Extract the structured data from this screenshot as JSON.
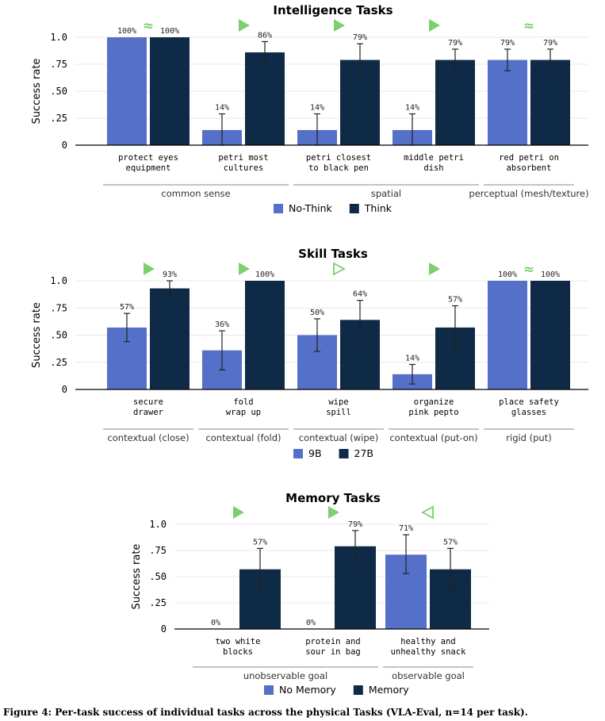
{
  "colors": {
    "light": "#5570c8",
    "dark": "#0e2a47",
    "marker": "#7ccf6e"
  },
  "chart_data": [
    {
      "type": "bar",
      "title": "Intelligence Tasks",
      "ylabel": "Success rate",
      "ylim": [
        0,
        1.0
      ],
      "yticks": [
        "0",
        ".25",
        ".50",
        ".75",
        "1.0"
      ],
      "categories": [
        "protect eyes\nequipment",
        "petri most\ncultures",
        "petri closest\nto black pen",
        "middle petri\ndish",
        "red petri on\nabsorbent"
      ],
      "series": [
        {
          "name": "No-Think",
          "values": [
            1.0,
            0.14,
            0.14,
            0.14,
            0.79
          ],
          "labels": [
            "100%",
            "14%",
            "14%",
            "14%",
            "79%"
          ],
          "err_low": [
            0.0,
            0.14,
            0.14,
            0.14,
            0.1
          ],
          "err_high": [
            0.0,
            0.15,
            0.15,
            0.15,
            0.1
          ]
        },
        {
          "name": "Think",
          "values": [
            1.0,
            0.86,
            0.79,
            0.79,
            0.79
          ],
          "labels": [
            "100%",
            "86%",
            "79%",
            "79%",
            "79%"
          ],
          "err_low": [
            0.0,
            0.1,
            0.15,
            0.1,
            0.1
          ],
          "err_high": [
            0.0,
            0.1,
            0.15,
            0.1,
            0.1
          ]
        }
      ],
      "markers": [
        "≈",
        "filled-right",
        "filled-right",
        "filled-right",
        "≈"
      ],
      "groups": [
        {
          "label": "common sense",
          "from": 0,
          "to": 1
        },
        {
          "label": "spatial",
          "from": 2,
          "to": 3
        },
        {
          "label": "perceptual (mesh/texture)",
          "from": 4,
          "to": 4
        }
      ],
      "legend": [
        "No-Think",
        "Think"
      ]
    },
    {
      "type": "bar",
      "title": "Skill Tasks",
      "ylabel": "Success rate",
      "ylim": [
        0,
        1.0
      ],
      "yticks": [
        "0",
        ".25",
        ".50",
        ".75",
        "1.0"
      ],
      "categories": [
        "secure\ndrawer",
        "fold\nwrap up",
        "wipe\nspill",
        "organize\npink pepto",
        "place safety\nglasses"
      ],
      "series": [
        {
          "name": "9B",
          "values": [
            0.57,
            0.36,
            0.5,
            0.14,
            1.0
          ],
          "labels": [
            "57%",
            "36%",
            "50%",
            "14%",
            "100%"
          ],
          "err_low": [
            0.13,
            0.18,
            0.15,
            0.09,
            0.0
          ],
          "err_high": [
            0.13,
            0.18,
            0.15,
            0.09,
            0.0
          ]
        },
        {
          "name": "27B",
          "values": [
            0.93,
            1.0,
            0.64,
            0.57,
            1.0
          ],
          "labels": [
            "93%",
            "100%",
            "64%",
            "57%",
            "100%"
          ],
          "err_low": [
            0.07,
            0.0,
            0.18,
            0.2,
            0.0
          ],
          "err_high": [
            0.07,
            0.0,
            0.18,
            0.2,
            0.0
          ]
        }
      ],
      "markers": [
        "filled-right",
        "filled-right",
        "hollow-right",
        "filled-right",
        "≈"
      ],
      "groups": [
        {
          "label": "contextual (close)",
          "from": 0,
          "to": 0
        },
        {
          "label": "contextual (fold)",
          "from": 1,
          "to": 1
        },
        {
          "label": "contextual (wipe)",
          "from": 2,
          "to": 2
        },
        {
          "label": "contextual (put-on)",
          "from": 3,
          "to": 3
        },
        {
          "label": "rigid (put)",
          "from": 4,
          "to": 4
        }
      ],
      "legend": [
        "9B",
        "27B"
      ]
    },
    {
      "type": "bar",
      "title": "Memory Tasks",
      "ylabel": "Success rate",
      "ylim": [
        0,
        1.0
      ],
      "yticks": [
        "0",
        ".25",
        ".50",
        ".75",
        "1.0"
      ],
      "categories": [
        "two white\nblocks",
        "protein and\nsour in bag",
        "healthy and\nunhealthy snack"
      ],
      "series": [
        {
          "name": "No Memory",
          "values": [
            0.0,
            0.0,
            0.71
          ],
          "labels": [
            "0%",
            "0%",
            "71%"
          ],
          "err_low": [
            0.0,
            0.0,
            0.18
          ],
          "err_high": [
            0.0,
            0.0,
            0.19
          ]
        },
        {
          "name": "Memory",
          "values": [
            0.57,
            0.79,
            0.57
          ],
          "labels": [
            "57%",
            "79%",
            "57%"
          ],
          "err_low": [
            0.2,
            0.15,
            0.2
          ],
          "err_high": [
            0.2,
            0.15,
            0.2
          ]
        }
      ],
      "markers": [
        "filled-right",
        "filled-right",
        "hollow-left"
      ],
      "groups": [
        {
          "label": "unobservable goal",
          "from": 0,
          "to": 1
        },
        {
          "label": "observable goal",
          "from": 2,
          "to": 2
        }
      ],
      "legend": [
        "No Memory",
        "Memory"
      ]
    }
  ],
  "caption": "Figure 4: Per-task success of individual tasks across the physical Tasks (VLA-Eval, n=14 per task)."
}
